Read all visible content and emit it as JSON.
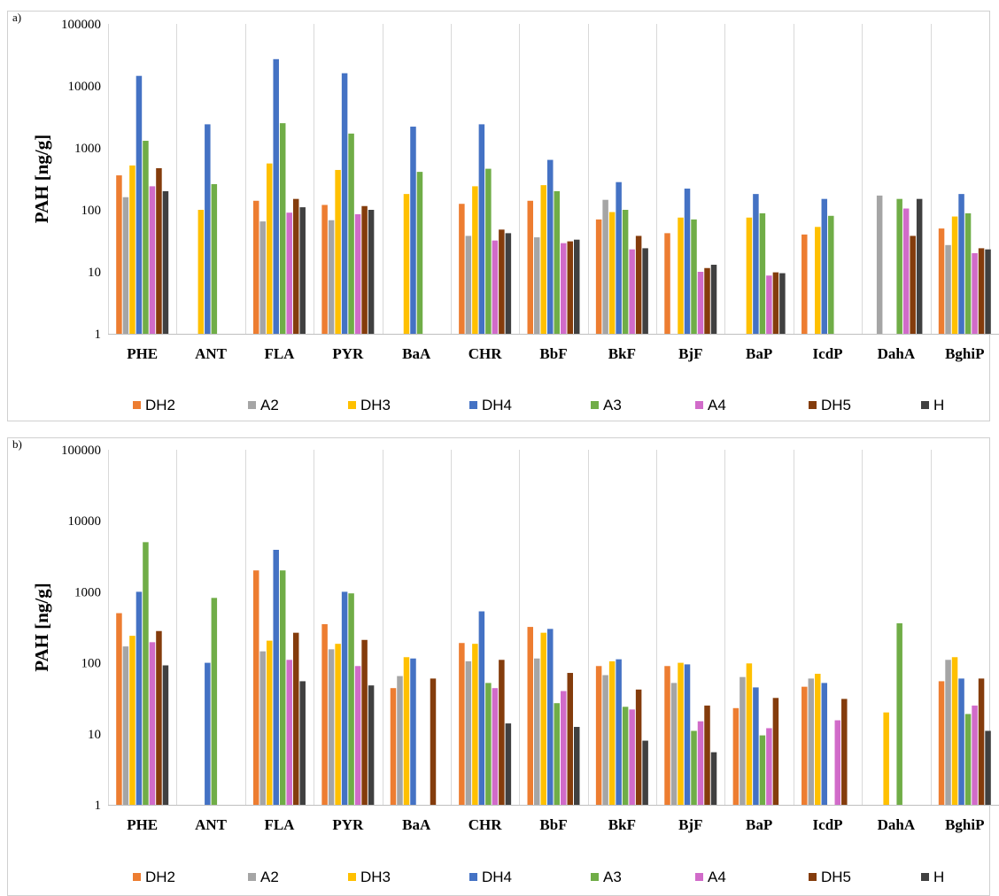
{
  "chart_data": [
    {
      "panel_label": "a)",
      "type": "bar",
      "yscale": "log",
      "ylim": [
        1,
        100000
      ],
      "ylabel": "PAH [ng/g]",
      "yticks": [
        "1",
        "10",
        "100",
        "1000",
        "10000",
        "100000"
      ],
      "grid": "vertical lines between categories",
      "legend_position": "bottom",
      "categories": [
        "PHE",
        "ANT",
        "FLA",
        "PYR",
        "BaA",
        "CHR",
        "BbF",
        "BkF",
        "BjF",
        "BaP",
        "IcdP",
        "DahA",
        "BghiP"
      ],
      "series": [
        {
          "name": "DH2",
          "color": "#ED7D31",
          "values": [
            360,
            null,
            140,
            120,
            null,
            125,
            140,
            70,
            42,
            null,
            40,
            null,
            50
          ]
        },
        {
          "name": "A2",
          "color": "#A5A5A5",
          "values": [
            160,
            null,
            65,
            68,
            null,
            38,
            36,
            145,
            null,
            null,
            null,
            170,
            27
          ]
        },
        {
          "name": "DH3",
          "color": "#FFC000",
          "values": [
            520,
            100,
            560,
            440,
            180,
            240,
            250,
            92,
            75,
            75,
            53,
            null,
            78
          ]
        },
        {
          "name": "DH4",
          "color": "#4472C4",
          "values": [
            14500,
            2400,
            27000,
            16000,
            2200,
            2400,
            640,
            280,
            220,
            180,
            150,
            null,
            180
          ]
        },
        {
          "name": "A3",
          "color": "#70AD47",
          "values": [
            1300,
            260,
            2500,
            1700,
            410,
            460,
            200,
            100,
            70,
            88,
            80,
            150,
            88
          ]
        },
        {
          "name": "A4",
          "color": "#D16BC9",
          "values": [
            240,
            null,
            90,
            85,
            null,
            32,
            29,
            23,
            10,
            8.7,
            null,
            105,
            20
          ]
        },
        {
          "name": "DH5",
          "color": "#843C0C",
          "values": [
            470,
            null,
            150,
            115,
            null,
            48,
            31,
            38,
            11.5,
            9.8,
            null,
            38,
            24
          ]
        },
        {
          "name": "H",
          "color": "#404040",
          "values": [
            200,
            null,
            110,
            100,
            null,
            42,
            33,
            24,
            13,
            9.5,
            null,
            150,
            23
          ]
        }
      ]
    },
    {
      "panel_label": "b)",
      "type": "bar",
      "yscale": "log",
      "ylim": [
        1,
        100000
      ],
      "ylabel": "PAH [ng/g]",
      "yticks": [
        "1",
        "10",
        "100",
        "1000",
        "10000",
        "100000"
      ],
      "grid": "vertical lines between categories",
      "legend_position": "bottom",
      "categories": [
        "PHE",
        "ANT",
        "FLA",
        "PYR",
        "BaA",
        "CHR",
        "BbF",
        "BkF",
        "BjF",
        "BaP",
        "IcdP",
        "DahA",
        "BghiP"
      ],
      "series": [
        {
          "name": "DH2",
          "color": "#ED7D31",
          "values": [
            500,
            null,
            2000,
            350,
            44,
            190,
            320,
            90,
            90,
            23,
            46,
            null,
            55
          ]
        },
        {
          "name": "A2",
          "color": "#A5A5A5",
          "values": [
            170,
            null,
            145,
            155,
            65,
            105,
            115,
            67,
            52,
            63,
            60,
            null,
            110
          ]
        },
        {
          "name": "DH3",
          "color": "#FFC000",
          "values": [
            240,
            null,
            205,
            185,
            120,
            185,
            265,
            105,
            100,
            98,
            70,
            20,
            120
          ]
        },
        {
          "name": "DH4",
          "color": "#4472C4",
          "values": [
            1000,
            100,
            3900,
            1000,
            115,
            530,
            300,
            112,
            95,
            45,
            52,
            null,
            60
          ]
        },
        {
          "name": "A3",
          "color": "#70AD47",
          "values": [
            5000,
            820,
            2000,
            950,
            null,
            52,
            27,
            24,
            11,
            9.5,
            null,
            360,
            19
          ]
        },
        {
          "name": "A4",
          "color": "#D16BC9",
          "values": [
            195,
            null,
            110,
            90,
            null,
            44,
            40,
            22,
            15,
            12,
            15.5,
            null,
            25
          ]
        },
        {
          "name": "DH5",
          "color": "#843C0C",
          "values": [
            280,
            null,
            265,
            210,
            60,
            110,
            72,
            42,
            25,
            32,
            31,
            null,
            60
          ]
        },
        {
          "name": "H",
          "color": "#404040",
          "values": [
            92,
            null,
            55,
            48,
            null,
            14,
            12.5,
            8,
            5.5,
            null,
            null,
            null,
            11
          ]
        }
      ]
    }
  ]
}
